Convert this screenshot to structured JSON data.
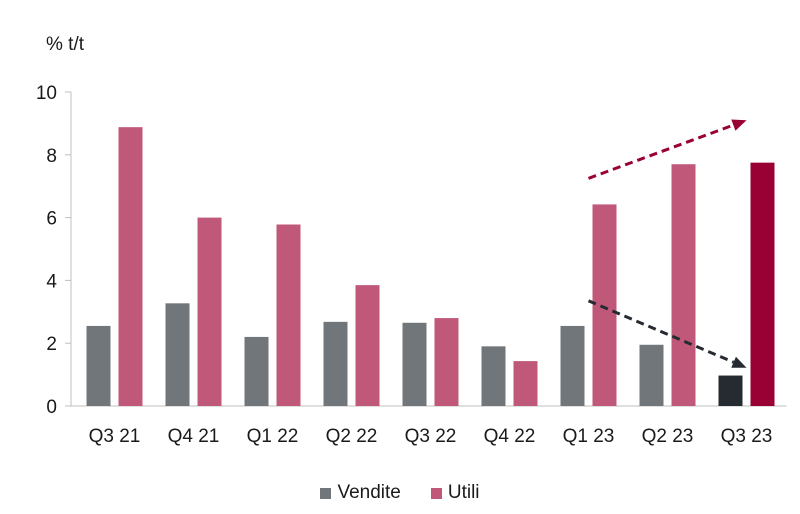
{
  "chart_data": {
    "type": "bar",
    "ylabel": "% t/t",
    "ylim": [
      0,
      10
    ],
    "yticks": [
      0,
      2,
      4,
      6,
      8,
      10
    ],
    "categories": [
      "Q3 21",
      "Q4 21",
      "Q1 22",
      "Q2 22",
      "Q3 22",
      "Q4 22",
      "Q1 23",
      "Q2 23",
      "Q3 23"
    ],
    "series": [
      {
        "name": "Vendite",
        "color": "#70767a",
        "values": [
          2.55,
          3.27,
          2.2,
          2.68,
          2.65,
          1.9,
          2.55,
          1.95,
          0.97
        ]
      },
      {
        "name": "Utili",
        "color": "#c0587a",
        "values": [
          8.88,
          6.0,
          5.78,
          3.85,
          2.8,
          1.43,
          6.42,
          7.7,
          7.75
        ]
      }
    ],
    "highlight": {
      "category": "Q3 23",
      "colors": {
        "Vendite": "#252b31",
        "Utili": "#990033"
      }
    },
    "annotations": [
      {
        "type": "dashed-arrow",
        "color": "#990033",
        "from": [
          "Q1 23",
          7.25
        ],
        "to": [
          "Q3 23",
          9.1
        ]
      },
      {
        "type": "dashed-arrow",
        "color": "#252b31",
        "from": [
          "Q1 23",
          3.35
        ],
        "to": [
          "Q3 23",
          1.22
        ]
      }
    ],
    "grid": false,
    "legend_position": "bottom-center"
  }
}
